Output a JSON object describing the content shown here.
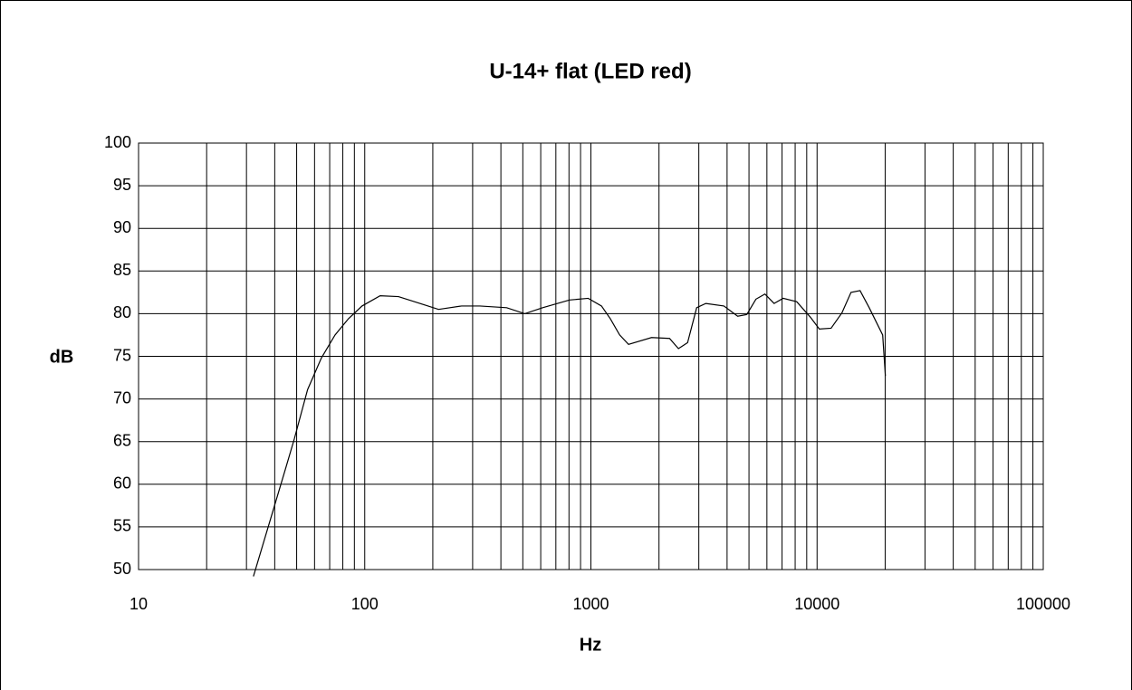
{
  "chart_data": {
    "type": "line",
    "title": "U-14+ flat (LED red)",
    "xlabel": "Hz",
    "ylabel": "dB",
    "x": [
      32.2,
      38.7,
      44.4,
      48.8,
      55.9,
      64.3,
      73.9,
      84.7,
      97.3,
      117,
      141,
      185,
      212,
      268,
      323,
      424,
      510,
      612,
      804,
      973,
      1114,
      1219,
      1340,
      1467,
      1854,
      2227,
      2438,
      2676,
      2935,
      3222,
      3873,
      4456,
      4890,
      5365,
      5880,
      6456,
      7079,
      8128,
      9333,
      10233,
      11536,
      12882,
      14125,
      15488,
      17000,
      19500,
      20050
    ],
    "series": [
      {
        "color": "#000000",
        "values": [
          49.2,
          56.3,
          61.6,
          65.3,
          71.1,
          74.8,
          77.5,
          79.4,
          80.9,
          82.1,
          82.0,
          81.0,
          80.5,
          80.9,
          80.9,
          80.7,
          80.0,
          80.7,
          81.6,
          81.8,
          80.9,
          79.4,
          77.5,
          76.4,
          77.2,
          77.1,
          75.9,
          76.6,
          80.7,
          81.2,
          80.9,
          79.7,
          79.9,
          81.7,
          82.3,
          81.2,
          81.8,
          81.4,
          79.6,
          78.2,
          78.3,
          80.1,
          82.5,
          82.7,
          80.7,
          77.5,
          72.7
        ]
      }
    ],
    "xlim": [
      10,
      100000
    ],
    "xticks": [
      10,
      100,
      1000,
      10000,
      100000
    ],
    "xscale": "log",
    "minor_grid": true,
    "ylim": [
      50,
      100
    ],
    "yticks": [
      50,
      55,
      60,
      65,
      70,
      75,
      80,
      85,
      90,
      95,
      100
    ],
    "grid": true
  }
}
